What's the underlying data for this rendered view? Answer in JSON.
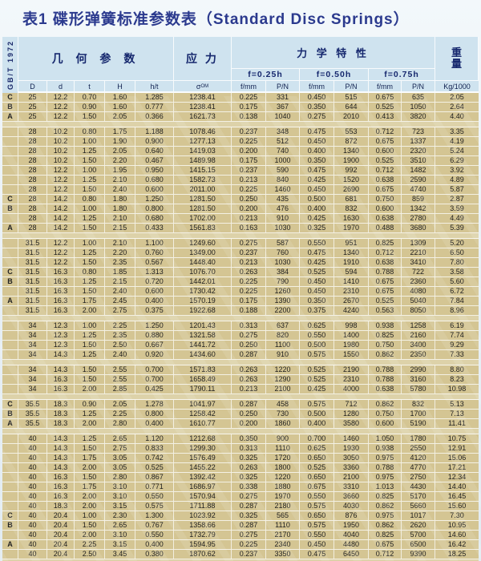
{
  "standard": "GB/T 1972",
  "title": "表1 碟形弹簧标准参数表（Standard Disc Springs）",
  "header": {
    "geometry": "几 何 参 数",
    "stress": "应 力",
    "mechanical": "力 学 特 性",
    "weight": "重量",
    "deflections": [
      "f=0.25h",
      "f=0.50h",
      "f=0.75h"
    ],
    "columns": [
      "D",
      "d",
      "t",
      "H",
      "h/t"
    ],
    "sigma_base": "σ",
    "sigma_sub": "OM",
    "mech_cols": [
      "f/mm",
      "P/N",
      "f/mm",
      "P/N",
      "f/mm",
      "P/N"
    ],
    "weight_unit": "Kg/1000"
  },
  "colors": {
    "title_navy": "#2b3a8e",
    "header_blue": "#cfe3ef",
    "row_tan": "#d4c593",
    "separator_tan": "#ddd2a9"
  },
  "table": {
    "groups": [
      {
        "rows": [
          [
            "C",
            "25",
            "12.2",
            "0.70",
            "1.60",
            "1.285",
            "1238.41",
            "0.225",
            "331",
            "0.450",
            "515",
            "0.675",
            "635",
            "2.05"
          ],
          [
            "B",
            "25",
            "12.2",
            "0.90",
            "1.60",
            "0.777",
            "1238.41",
            "0.175",
            "367",
            "0.350",
            "644",
            "0.525",
            "1050",
            "2.64"
          ],
          [
            "A",
            "25",
            "12.2",
            "1.50",
            "2.05",
            "0.366",
            "1621.73",
            "0.138",
            "1040",
            "0.275",
            "2010",
            "0.413",
            "3820",
            "4.40"
          ]
        ]
      },
      {
        "rows": [
          [
            "",
            "28",
            "10.2",
            "0.80",
            "1.75",
            "1.188",
            "1078.46",
            "0.237",
            "348",
            "0.475",
            "553",
            "0.712",
            "723",
            "3.35"
          ],
          [
            "",
            "28",
            "10.2",
            "1.00",
            "1.90",
            "0.900",
            "1277.13",
            "0.225",
            "512",
            "0.450",
            "872",
            "0.675",
            "1337",
            "4.19"
          ],
          [
            "",
            "28",
            "10.2",
            "1.25",
            "2.05",
            "0.640",
            "1419.03",
            "0.200",
            "740",
            "0.400",
            "1340",
            "0.600",
            "2320",
            "5.24"
          ],
          [
            "",
            "28",
            "10.2",
            "1.50",
            "2.20",
            "0.467",
            "1489.98",
            "0.175",
            "1000",
            "0.350",
            "1900",
            "0.525",
            "3510",
            "6.29"
          ],
          [
            "",
            "28",
            "12.2",
            "1.00",
            "1.95",
            "0.950",
            "1415.15",
            "0.237",
            "590",
            "0.475",
            "992",
            "0.712",
            "1482",
            "3.92"
          ],
          [
            "",
            "28",
            "12.2",
            "1.25",
            "2.10",
            "0.680",
            "1582.73",
            "0.213",
            "840",
            "0.425",
            "1520",
            "0.638",
            "2590",
            "4.89"
          ],
          [
            "",
            "28",
            "12.2",
            "1.50",
            "2.40",
            "0.600",
            "2011.00",
            "0.225",
            "1460",
            "0.450",
            "2690",
            "0.675",
            "4740",
            "5.87"
          ],
          [
            "C",
            "28",
            "14.2",
            "0.80",
            "1.80",
            "1.250",
            "1281.50",
            "0.250",
            "435",
            "0.500",
            "681",
            "0.750",
            "859",
            "2.87"
          ],
          [
            "B",
            "28",
            "14.2",
            "1.00",
            "1.80",
            "0.800",
            "1281.50",
            "0.200",
            "476",
            "0.400",
            "832",
            "0.600",
            "1342",
            "3.59"
          ],
          [
            "",
            "28",
            "14.2",
            "1.25",
            "2.10",
            "0.680",
            "1702.00",
            "0.213",
            "910",
            "0.425",
            "1630",
            "0.638",
            "2780",
            "4.49"
          ],
          [
            "A",
            "28",
            "14.2",
            "1.50",
            "2.15",
            "0.433",
            "1561.83",
            "0.163",
            "1030",
            "0.325",
            "1970",
            "0.488",
            "3680",
            "5.39"
          ]
        ]
      },
      {
        "rows": [
          [
            "",
            "31.5",
            "12.2",
            "1.00",
            "2.10",
            "1.100",
            "1249.60",
            "0.275",
            "587",
            "0.550",
            "951",
            "0.825",
            "1309",
            "5.20"
          ],
          [
            "",
            "31.5",
            "12.2",
            "1.25",
            "2.20",
            "0.760",
            "1349.00",
            "0.237",
            "760",
            "0.475",
            "1340",
            "0.712",
            "2210",
            "6.50"
          ],
          [
            "",
            "31.5",
            "12.2",
            "1.50",
            "2.35",
            "0.567",
            "1448.40",
            "0.213",
            "1030",
            "0.425",
            "1910",
            "0.638",
            "3410",
            "7.80"
          ],
          [
            "C",
            "31.5",
            "16.3",
            "0.80",
            "1.85",
            "1.313",
            "1076.70",
            "0.263",
            "384",
            "0.525",
            "594",
            "0.788",
            "722",
            "3.58"
          ],
          [
            "B",
            "31.5",
            "16.3",
            "1.25",
            "2.15",
            "0.720",
            "1442.01",
            "0.225",
            "790",
            "0.450",
            "1410",
            "0.675",
            "2360",
            "5.60"
          ],
          [
            "",
            "31.5",
            "16.3",
            "1.50",
            "2.40",
            "0.600",
            "1730.42",
            "0.225",
            "1260",
            "0.450",
            "2310",
            "0.675",
            "4080",
            "6.72"
          ],
          [
            "A",
            "31.5",
            "16.3",
            "1.75",
            "2.45",
            "0.400",
            "1570.19",
            "0.175",
            "1390",
            "0.350",
            "2670",
            "0.525",
            "5040",
            "7.84"
          ],
          [
            "",
            "31.5",
            "16.3",
            "2.00",
            "2.75",
            "0.375",
            "1922.68",
            "0.188",
            "2200",
            "0.375",
            "4240",
            "0.563",
            "8050",
            "8.96"
          ]
        ]
      },
      {
        "rows": [
          [
            "",
            "34",
            "12.3",
            "1.00",
            "2.25",
            "1.250",
            "1201.43",
            "0.313",
            "637",
            "0.625",
            "998",
            "0.938",
            "1258",
            "6.19"
          ],
          [
            "",
            "34",
            "12.3",
            "1.25",
            "2.35",
            "0.880",
            "1321.58",
            "0.275",
            "820",
            "0.550",
            "1400",
            "0.825",
            "2160",
            "7.74"
          ],
          [
            "",
            "34",
            "12.3",
            "1.50",
            "2.50",
            "0.667",
            "1441.72",
            "0.250",
            "1100",
            "0.500",
            "1980",
            "0.750",
            "3400",
            "9.29"
          ],
          [
            "",
            "34",
            "14.3",
            "1.25",
            "2.40",
            "0.920",
            "1434.60",
            "0.287",
            "910",
            "0.575",
            "1550",
            "0.862",
            "2350",
            "7.33"
          ]
        ]
      },
      {
        "rows": [
          [
            "",
            "34",
            "14.3",
            "1.50",
            "2.55",
            "0.700",
            "1571.83",
            "0.263",
            "1220",
            "0.525",
            "2190",
            "0.788",
            "2990",
            "8.80"
          ],
          [
            "",
            "34",
            "16.3",
            "1.50",
            "2.55",
            "0.700",
            "1658.49",
            "0.263",
            "1290",
            "0.525",
            "2310",
            "0.788",
            "3160",
            "8.23"
          ],
          [
            "",
            "34",
            "16.3",
            "2.00",
            "2.85",
            "0.425",
            "1790.11",
            "0.213",
            "2100",
            "0.425",
            "4000",
            "0.638",
            "5780",
            "10.98"
          ]
        ]
      },
      {
        "rows": [
          [
            "C",
            "35.5",
            "18.3",
            "0.90",
            "2.05",
            "1.278",
            "1041.97",
            "0.287",
            "458",
            "0.575",
            "712",
            "0.862",
            "832",
            "5.13"
          ],
          [
            "B",
            "35.5",
            "18.3",
            "1.25",
            "2.25",
            "0.800",
            "1258.42",
            "0.250",
            "730",
            "0.500",
            "1280",
            "0.750",
            "1700",
            "7.13"
          ],
          [
            "A",
            "35.5",
            "18.3",
            "2.00",
            "2.80",
            "0.400",
            "1610.77",
            "0.200",
            "1860",
            "0.400",
            "3580",
            "0.600",
            "5190",
            "11.41"
          ]
        ]
      },
      {
        "rows": [
          [
            "",
            "40",
            "14.3",
            "1.25",
            "2.65",
            "1.120",
            "1212.68",
            "0.350",
            "900",
            "0.700",
            "1460",
            "1.050",
            "1780",
            "10.75"
          ],
          [
            "",
            "40",
            "14.3",
            "1.50",
            "2.75",
            "0.833",
            "1299.30",
            "0.313",
            "1110",
            "0.625",
            "1930",
            "0.938",
            "2550",
            "12.91"
          ],
          [
            "",
            "40",
            "14.3",
            "1.75",
            "3.05",
            "0.742",
            "1576.49",
            "0.325",
            "1720",
            "0.650",
            "3050",
            "0.975",
            "4120",
            "15.06"
          ],
          [
            "",
            "40",
            "14.3",
            "2.00",
            "3.05",
            "0.525",
            "1455.22",
            "0.263",
            "1800",
            "0.525",
            "3360",
            "0.788",
            "4770",
            "17.21"
          ],
          [
            "",
            "40",
            "16.3",
            "1.50",
            "2.80",
            "0.867",
            "1392.42",
            "0.325",
            "1220",
            "0.650",
            "2100",
            "0.975",
            "2750",
            "12.34"
          ],
          [
            "",
            "40",
            "16.3",
            "1.75",
            "3.10",
            "0.771",
            "1686.97",
            "0.338",
            "1880",
            "0.675",
            "3310",
            "1.013",
            "4430",
            "14.40"
          ],
          [
            "",
            "40",
            "16.3",
            "2.00",
            "3.10",
            "0.550",
            "1570.94",
            "0.275",
            "1970",
            "0.550",
            "3660",
            "0.825",
            "5170",
            "16.45"
          ],
          [
            "",
            "40",
            "18.3",
            "2.00",
            "3.15",
            "0.575",
            "1711.88",
            "0.287",
            "2180",
            "0.575",
            "4030",
            "0.862",
            "5660",
            "15.60"
          ],
          [
            "C",
            "40",
            "20.4",
            "1.00",
            "2.30",
            "1.300",
            "1023.92",
            "0.325",
            "565",
            "0.650",
            "876",
            "0.975",
            "1017",
            "7.30"
          ],
          [
            "B",
            "40",
            "20.4",
            "1.50",
            "2.65",
            "0.767",
            "1358.66",
            "0.287",
            "1110",
            "0.575",
            "1950",
            "0.862",
            "2620",
            "10.95"
          ],
          [
            "",
            "40",
            "20.4",
            "2.00",
            "3.10",
            "0.550",
            "1732.79",
            "0.275",
            "2170",
            "0.550",
            "4040",
            "0.825",
            "5700",
            "14.60"
          ],
          [
            "A",
            "40",
            "20.4",
            "2.25",
            "3.15",
            "0.400",
            "1594.95",
            "0.225",
            "2340",
            "0.450",
            "4480",
            "0.675",
            "6500",
            "16.42"
          ],
          [
            "",
            "40",
            "20.4",
            "2.50",
            "3.45",
            "0.380",
            "1870.62",
            "0.237",
            "3350",
            "0.475",
            "6450",
            "0.712",
            "9390",
            "18.25"
          ]
        ]
      }
    ]
  }
}
